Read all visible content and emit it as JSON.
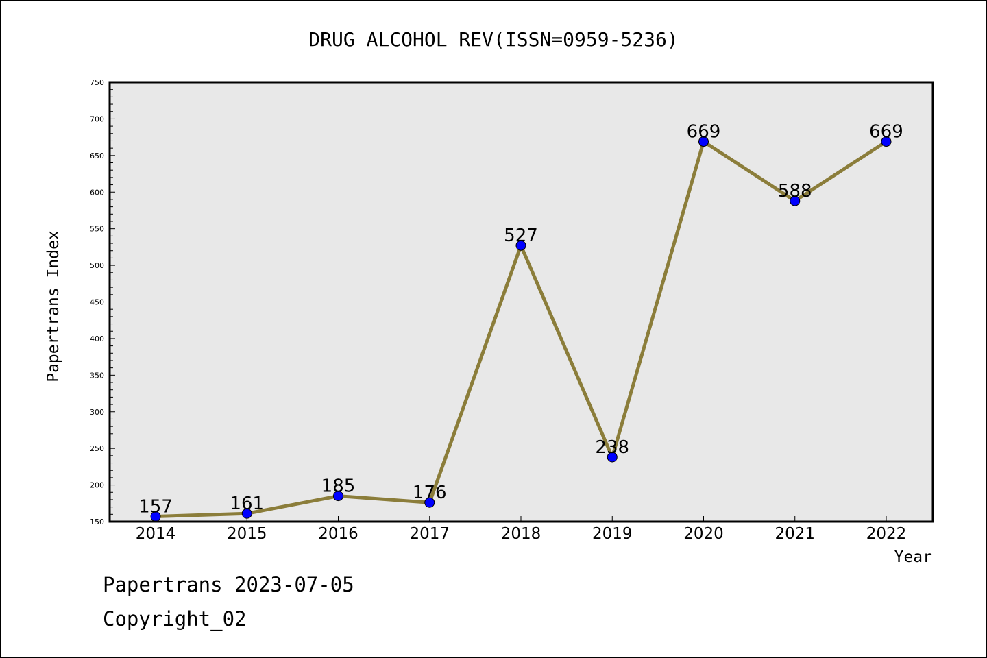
{
  "chart_data": {
    "type": "line",
    "title": "DRUG ALCOHOL REV(ISSN=0959-5236)",
    "xlabel": "Year",
    "ylabel": "Papertrans Index",
    "x": [
      "2014",
      "2015",
      "2016",
      "2017",
      "2018",
      "2019",
      "2020",
      "2021",
      "2022"
    ],
    "values": [
      157,
      161,
      185,
      176,
      527,
      238,
      669,
      588,
      669
    ],
    "data_labels": [
      "157",
      "161",
      "185",
      "176",
      "527",
      "238",
      "669",
      "588",
      "669"
    ],
    "ylim": [
      150,
      750
    ],
    "yticks": [
      150,
      200,
      250,
      300,
      350,
      400,
      450,
      500,
      550,
      600,
      650,
      700,
      750
    ],
    "grid": false,
    "legend": "none",
    "colors": {
      "line": "#8b7d3a",
      "marker": "#0000ff",
      "plot_background": "#e8e8e8"
    }
  },
  "footer": {
    "line1": "Papertrans 2023-07-05",
    "line2": "Copyright_02"
  }
}
